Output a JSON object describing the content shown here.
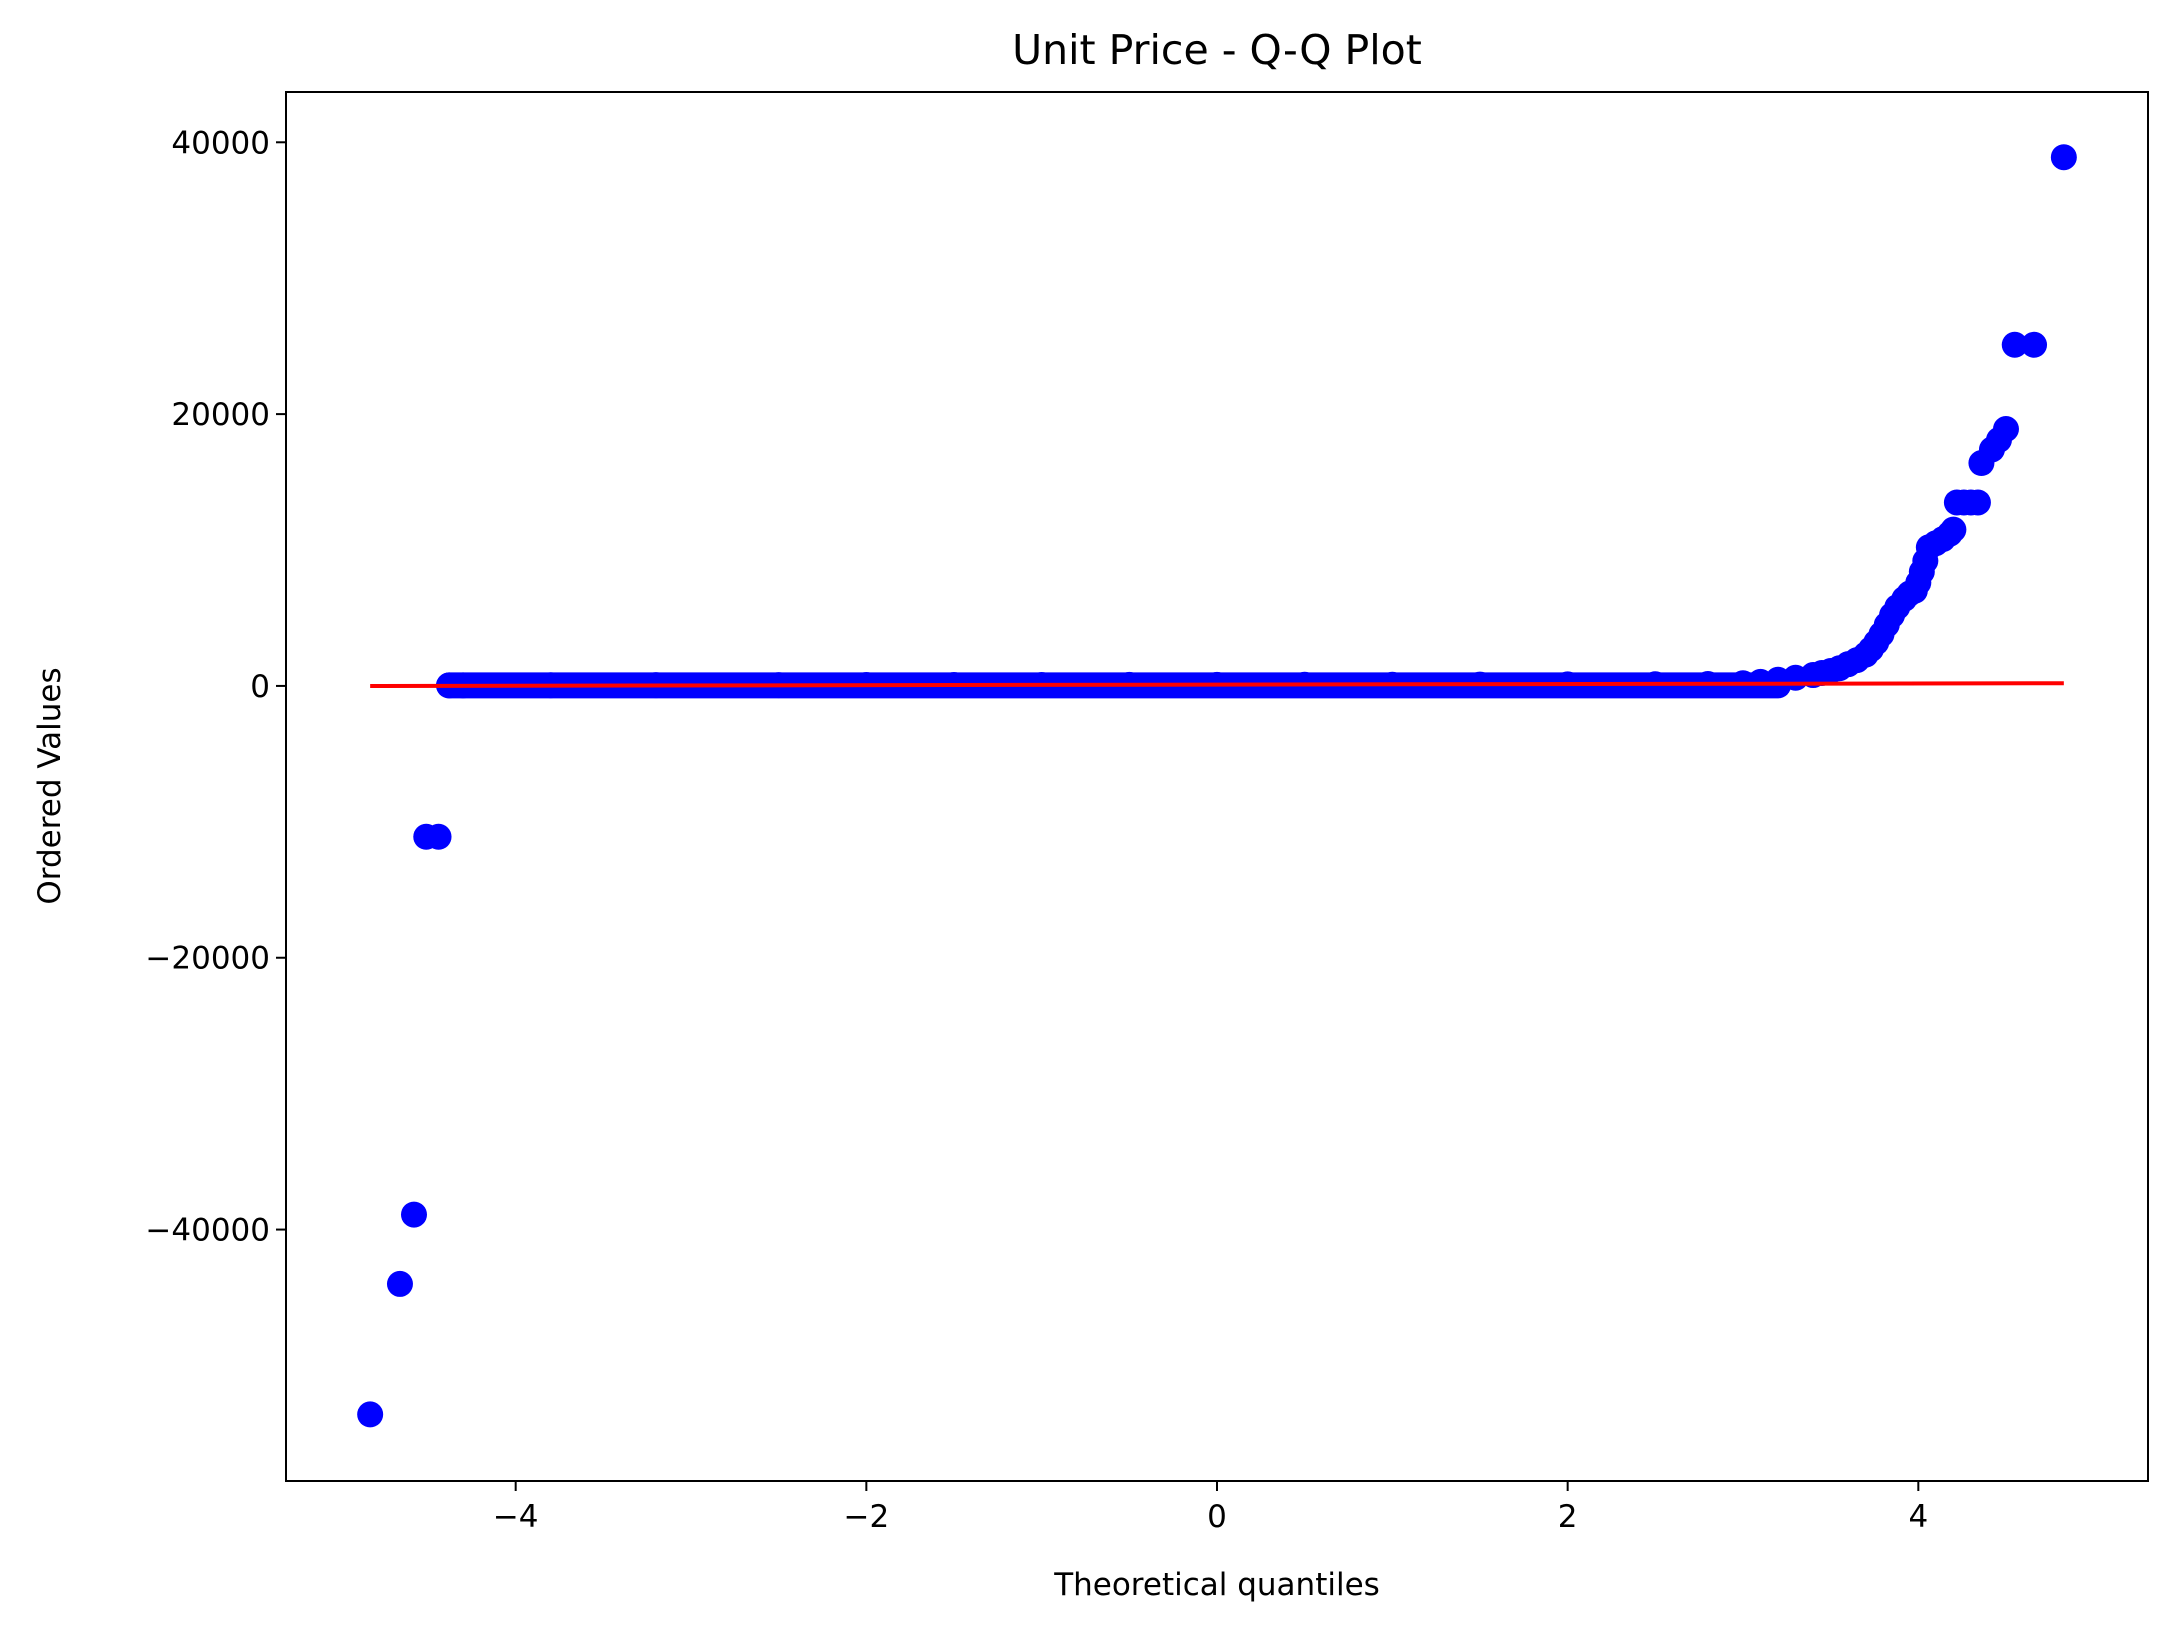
{
  "chart_data": {
    "type": "scatter",
    "title": "Unit Price - Q-Q Plot",
    "xlabel": "Theoretical quantiles",
    "ylabel": "Ordered Values",
    "xlim": [
      -5.31,
      5.31
    ],
    "ylim": [
      -58500,
      43700
    ],
    "x_ticks": [
      {
        "value": -4,
        "label": "−4"
      },
      {
        "value": -2,
        "label": "−2"
      },
      {
        "value": 0,
        "label": "0"
      },
      {
        "value": 2,
        "label": "2"
      },
      {
        "value": 4,
        "label": "4"
      }
    ],
    "y_ticks": [
      {
        "value": -40000,
        "label": "−40000"
      },
      {
        "value": -20000,
        "label": "−20000"
      },
      {
        "value": 0,
        "label": "0"
      },
      {
        "value": 20000,
        "label": "20000"
      },
      {
        "value": 40000,
        "label": "40000"
      }
    ],
    "grid": false,
    "legend": "none",
    "marker_color": "#0000ff",
    "line_color": "#ff0000",
    "fit_line": {
      "x": [
        -4.83,
        4.83
      ],
      "y": [
        -3,
        198
      ]
    },
    "bulk_band": {
      "x_start": -4.38,
      "x_end": 3.2,
      "y_value": 40
    },
    "points": [
      [
        -4.83,
        -53600
      ],
      [
        -4.66,
        -44000
      ],
      [
        -4.58,
        -38900
      ],
      [
        -4.51,
        -11100
      ],
      [
        -4.44,
        -11100
      ],
      [
        -4.38,
        40
      ],
      [
        -4.3,
        45
      ],
      [
        -3.8,
        50
      ],
      [
        -3.2,
        55
      ],
      [
        -2.5,
        60
      ],
      [
        -2.0,
        65
      ],
      [
        -1.5,
        70
      ],
      [
        -1.0,
        70
      ],
      [
        -0.5,
        75
      ],
      [
        0.0,
        80
      ],
      [
        0.5,
        85
      ],
      [
        1.0,
        90
      ],
      [
        1.5,
        100
      ],
      [
        2.0,
        110
      ],
      [
        2.5,
        120
      ],
      [
        2.8,
        140
      ],
      [
        3.0,
        200
      ],
      [
        3.1,
        300
      ],
      [
        3.2,
        450
      ],
      [
        3.3,
        600
      ],
      [
        3.4,
        800
      ],
      [
        3.45,
        950
      ],
      [
        3.5,
        1100
      ],
      [
        3.55,
        1300
      ],
      [
        3.6,
        1600
      ],
      [
        3.65,
        1900
      ],
      [
        3.7,
        2300
      ],
      [
        3.73,
        2700
      ],
      [
        3.76,
        3200
      ],
      [
        3.79,
        3800
      ],
      [
        3.82,
        4500
      ],
      [
        3.85,
        5200
      ],
      [
        3.88,
        5800
      ],
      [
        3.92,
        6400
      ],
      [
        3.95,
        6800
      ],
      [
        3.98,
        7000
      ],
      [
        4.0,
        7600
      ],
      [
        4.02,
        8400
      ],
      [
        4.04,
        9200
      ],
      [
        4.06,
        10200
      ],
      [
        4.1,
        10500
      ],
      [
        4.14,
        10800
      ],
      [
        4.18,
        11200
      ],
      [
        4.2,
        11500
      ],
      [
        4.22,
        13500
      ],
      [
        4.26,
        13500
      ],
      [
        4.3,
        13500
      ],
      [
        4.34,
        13500
      ],
      [
        4.36,
        16400
      ],
      [
        4.42,
        17400
      ],
      [
        4.46,
        18100
      ],
      [
        4.5,
        18900
      ],
      [
        4.55,
        25100
      ],
      [
        4.66,
        25100
      ],
      [
        4.83,
        38900
      ]
    ]
  }
}
